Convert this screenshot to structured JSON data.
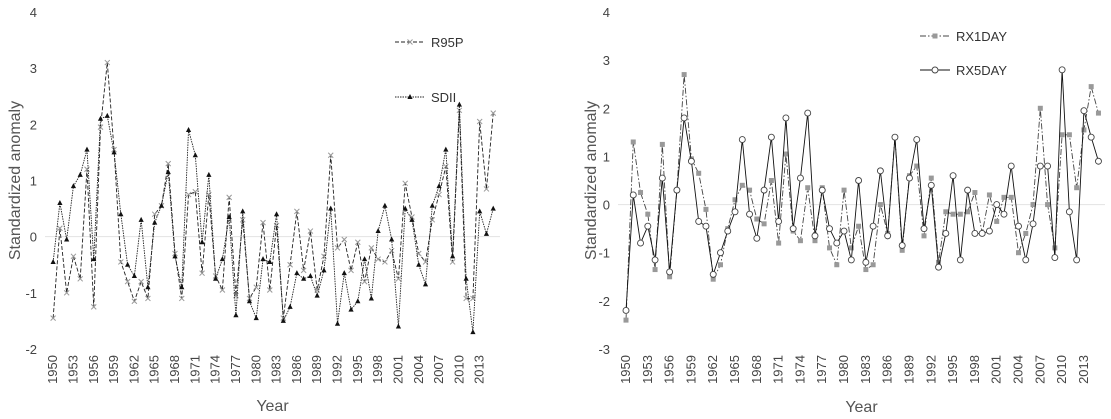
{
  "chart_data": [
    {
      "type": "line",
      "ylabel": "Standardized anomaly",
      "xlabel": "Year",
      "xlim": [
        1948.8,
        2016
      ],
      "ylim": [
        -2,
        4
      ],
      "yticks": [
        -2,
        -1,
        0,
        1,
        2,
        3,
        4
      ],
      "xticks": [
        1950,
        1953,
        1956,
        1959,
        1962,
        1965,
        1968,
        1971,
        1974,
        1977,
        1980,
        1983,
        1986,
        1989,
        1992,
        1995,
        1998,
        2001,
        2004,
        2007,
        2010,
        2013
      ],
      "zero_line": true,
      "x": [
        1950,
        1951,
        1952,
        1953,
        1954,
        1955,
        1956,
        1957,
        1958,
        1959,
        1960,
        1961,
        1962,
        1963,
        1964,
        1965,
        1966,
        1967,
        1968,
        1969,
        1970,
        1971,
        1972,
        1973,
        1974,
        1975,
        1976,
        1977,
        1978,
        1979,
        1980,
        1981,
        1982,
        1983,
        1984,
        1985,
        1986,
        1987,
        1988,
        1989,
        1990,
        1991,
        1992,
        1993,
        1994,
        1995,
        1996,
        1997,
        1998,
        1999,
        2000,
        2001,
        2002,
        2003,
        2004,
        2005,
        2006,
        2007,
        2008,
        2009,
        2010,
        2011,
        2012,
        2013,
        2014,
        2015
      ],
      "series": [
        {
          "name": "R95P",
          "color": "#222222",
          "marker_color": "#999999",
          "marker": "x",
          "dash": "dashed",
          "values": [
            -1.45,
            0.15,
            -1.0,
            -0.35,
            -0.75,
            1.2,
            -1.25,
            1.95,
            3.1,
            1.55,
            -0.45,
            -0.8,
            -1.15,
            -0.8,
            -1.1,
            0.4,
            0.55,
            1.3,
            -0.3,
            -1.1,
            0.75,
            0.8,
            -0.65,
            0.75,
            -0.7,
            -0.95,
            0.7,
            -1.05,
            0.3,
            -1.1,
            -0.9,
            0.25,
            -0.95,
            0.2,
            -1.45,
            -0.5,
            0.45,
            -0.6,
            0.1,
            -0.95,
            -0.35,
            1.45,
            -0.2,
            -0.05,
            -0.6,
            -0.1,
            -0.8,
            -0.2,
            -0.4,
            -0.45,
            -0.25,
            -0.75,
            0.95,
            0.35,
            -0.3,
            -0.45,
            0.3,
            0.75,
            1.25,
            -0.45,
            2.25,
            -1.1,
            -1.1,
            2.05,
            0.85,
            2.2
          ]
        },
        {
          "name": "SDII",
          "color": "#222222",
          "marker_color": "#111111",
          "marker": "triangle",
          "dash": "dotted",
          "values": [
            -0.45,
            0.6,
            -0.05,
            0.9,
            1.1,
            1.55,
            -0.4,
            2.1,
            2.15,
            1.5,
            0.4,
            -0.5,
            -0.7,
            0.3,
            -0.9,
            0.25,
            0.55,
            1.15,
            -0.35,
            -0.9,
            1.9,
            1.45,
            -0.1,
            1.1,
            -0.75,
            -0.4,
            0.35,
            -1.4,
            0.45,
            -1.15,
            -1.45,
            -0.4,
            -0.45,
            0.4,
            -1.5,
            -1.25,
            -0.65,
            -0.75,
            -0.7,
            -1.05,
            -0.6,
            0.5,
            -1.55,
            -0.65,
            -1.3,
            -1.15,
            -0.4,
            -1.1,
            0.1,
            0.55,
            -0.05,
            -1.6,
            0.5,
            0.3,
            -0.5,
            -0.85,
            0.55,
            0.9,
            1.55,
            -0.35,
            2.35,
            -0.75,
            -1.7,
            0.45,
            0.05,
            0.5
          ]
        }
      ]
    },
    {
      "type": "line",
      "ylabel": "Standardized anomaly",
      "xlabel": "Year",
      "xlim": [
        1948.9,
        2015.9
      ],
      "ylim": [
        -3,
        4
      ],
      "yticks": [
        -3,
        -2,
        -1,
        0,
        1,
        2,
        3,
        4
      ],
      "xticks": [
        1950,
        1953,
        1956,
        1959,
        1962,
        1965,
        1968,
        1971,
        1974,
        1977,
        1980,
        1983,
        1986,
        1989,
        1992,
        1995,
        1998,
        2001,
        2004,
        2007,
        2010,
        2013
      ],
      "zero_line": true,
      "x": [
        1950,
        1951,
        1952,
        1953,
        1954,
        1955,
        1956,
        1957,
        1958,
        1959,
        1960,
        1961,
        1962,
        1963,
        1964,
        1965,
        1966,
        1967,
        1968,
        1969,
        1970,
        1971,
        1972,
        1973,
        1974,
        1975,
        1976,
        1977,
        1978,
        1979,
        1980,
        1981,
        1982,
        1983,
        1984,
        1985,
        1986,
        1987,
        1988,
        1989,
        1990,
        1991,
        1992,
        1993,
        1994,
        1995,
        1996,
        1997,
        1998,
        1999,
        2000,
        2001,
        2002,
        2003,
        2004,
        2005,
        2006,
        2007,
        2008,
        2009,
        2010,
        2011,
        2012,
        2013,
        2014,
        2015
      ],
      "series": [
        {
          "name": "RX1DAY",
          "color": "#444444",
          "marker_color": "#999999",
          "marker": "square",
          "dash": "dashdot",
          "values": [
            -2.4,
            1.3,
            0.25,
            -0.2,
            -1.35,
            1.25,
            -1.5,
            0.3,
            2.7,
            0.95,
            0.65,
            -0.1,
            -1.55,
            -1.25,
            -0.5,
            0.1,
            0.4,
            0.3,
            -0.3,
            -0.4,
            0.5,
            -0.8,
            1.05,
            -0.55,
            -0.75,
            0.35,
            -0.75,
            0.35,
            -0.9,
            -1.25,
            0.3,
            -0.9,
            -0.45,
            -1.35,
            -1.25,
            0.0,
            -0.6,
            1.4,
            -0.95,
            0.6,
            0.8,
            -0.65,
            0.55,
            -1.2,
            -0.15,
            -0.2,
            -0.2,
            -0.15,
            0.25,
            -0.6,
            0.2,
            -0.35,
            0.15,
            0.15,
            -1.0,
            -0.6,
            0.0,
            2.0,
            0.0,
            -0.9,
            1.45,
            1.45,
            0.35,
            1.55,
            2.45,
            1.9
          ]
        },
        {
          "name": "RX5DAY",
          "color": "#111111",
          "marker_color": "#444444",
          "marker": "circle",
          "dash": "solid",
          "values": [
            -2.2,
            0.2,
            -0.8,
            -0.45,
            -1.15,
            0.55,
            -1.4,
            0.3,
            1.8,
            0.9,
            -0.35,
            -0.45,
            -1.45,
            -1.0,
            -0.55,
            -0.15,
            1.35,
            -0.2,
            -0.7,
            0.3,
            1.4,
            -0.35,
            1.8,
            -0.5,
            0.55,
            1.9,
            -0.65,
            0.3,
            -0.5,
            -0.8,
            -0.55,
            -1.15,
            0.5,
            -1.2,
            -0.45,
            0.7,
            -0.65,
            1.4,
            -0.85,
            0.55,
            1.35,
            -0.5,
            0.4,
            -1.3,
            -0.6,
            0.6,
            -1.15,
            0.3,
            -0.6,
            -0.6,
            -0.55,
            0.0,
            -0.2,
            0.8,
            -0.45,
            -1.15,
            -0.4,
            0.8,
            0.8,
            -1.1,
            2.8,
            -0.15,
            -1.15,
            1.95,
            1.4,
            0.9
          ]
        }
      ]
    }
  ]
}
